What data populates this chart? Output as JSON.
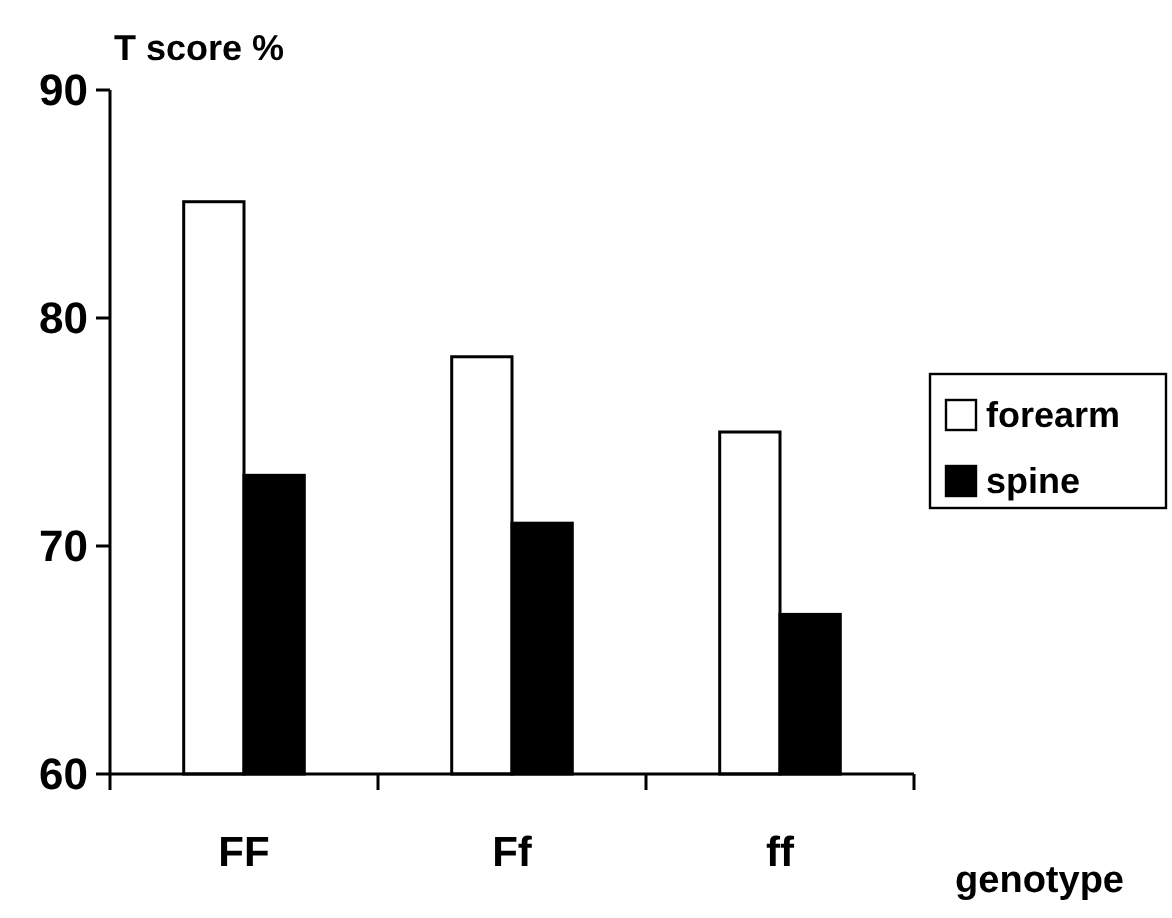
{
  "chart_data": {
    "type": "bar",
    "ylabel": "T score %",
    "xlabel": "genotype",
    "categories": [
      "FF",
      "Ff",
      "ff"
    ],
    "series": [
      {
        "name": "forearm",
        "color": "#ffffff",
        "values": [
          85.1,
          78.3,
          75
        ]
      },
      {
        "name": "spine",
        "color": "#000000",
        "values": [
          73.1,
          71,
          67
        ]
      }
    ],
    "ylim": [
      60,
      90
    ],
    "yticks": [
      60,
      70,
      80,
      90
    ],
    "grid": false,
    "legend": "right"
  }
}
